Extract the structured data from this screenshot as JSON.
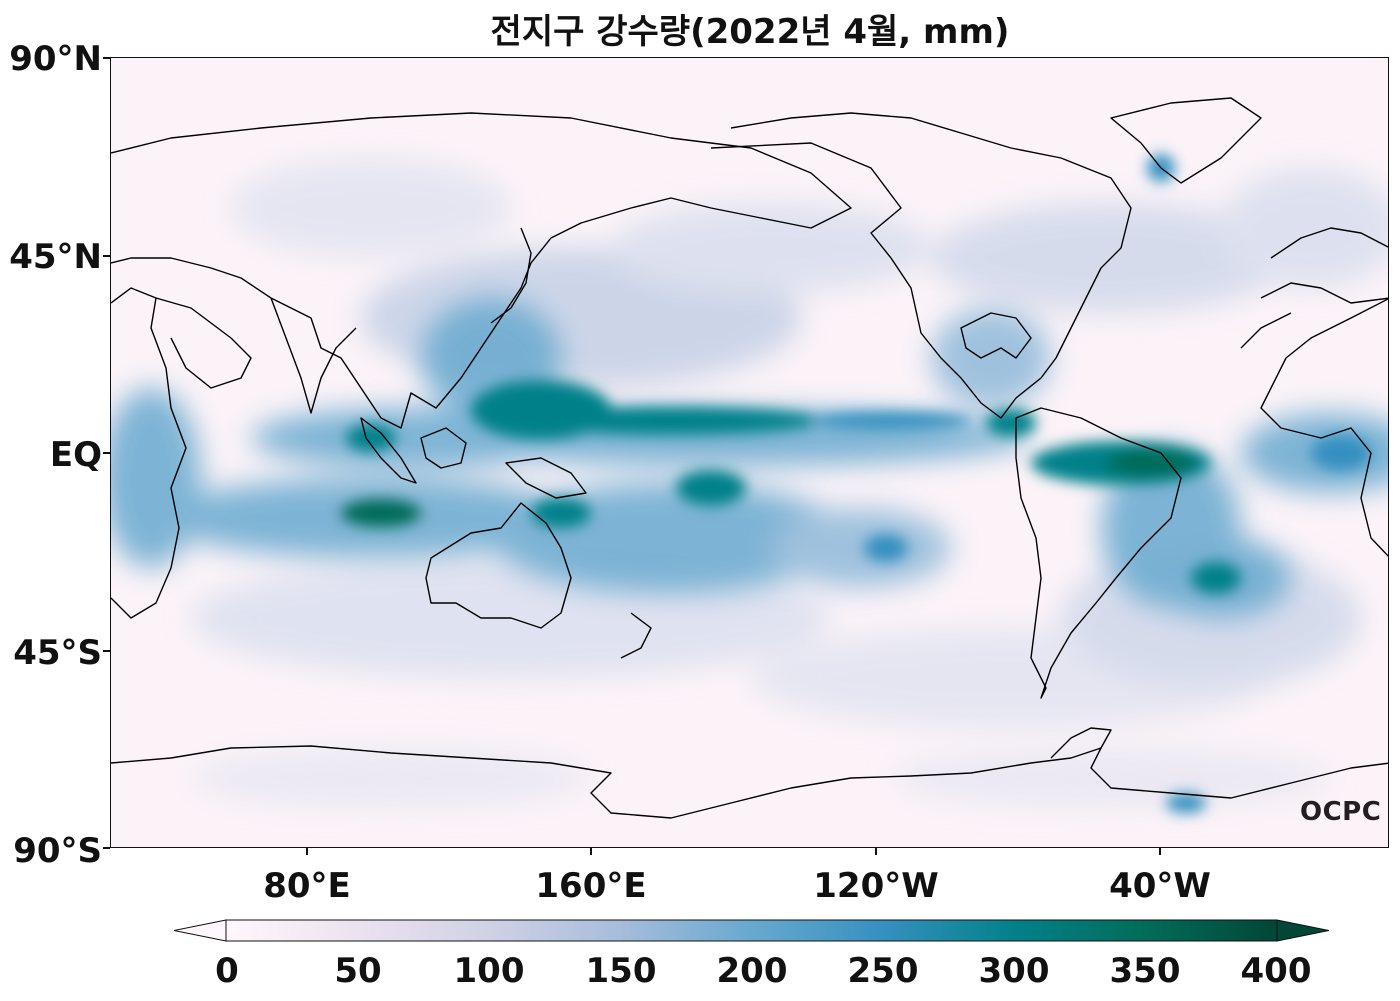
{
  "title": "전지구 강수량(2022년 4월, mm)",
  "y_axis_labels": [
    "90°N",
    "45°N",
    "EQ",
    "45°S",
    "90°S"
  ],
  "x_axis_labels": [
    "80°E",
    "160°E",
    "120°W",
    "40°W"
  ],
  "watermark": "OCPC",
  "colorbar": {
    "colormap": "PuBuGn",
    "min": 0,
    "max": 400,
    "extend": "both",
    "tick_labels": [
      "0",
      "50",
      "100",
      "150",
      "200",
      "250",
      "300",
      "350",
      "400"
    ],
    "colors": [
      "#fff7fb",
      "#ece2f0",
      "#d0d1e6",
      "#a6bddb",
      "#67a9cf",
      "#3690c0",
      "#02818a",
      "#016c59",
      "#014636"
    ]
  },
  "map": {
    "projection": "PlateCarree",
    "central_longitude": "180",
    "lat_range": [
      "90°S",
      "90°N"
    ],
    "lon_range": [
      "0°",
      "360°"
    ]
  }
}
